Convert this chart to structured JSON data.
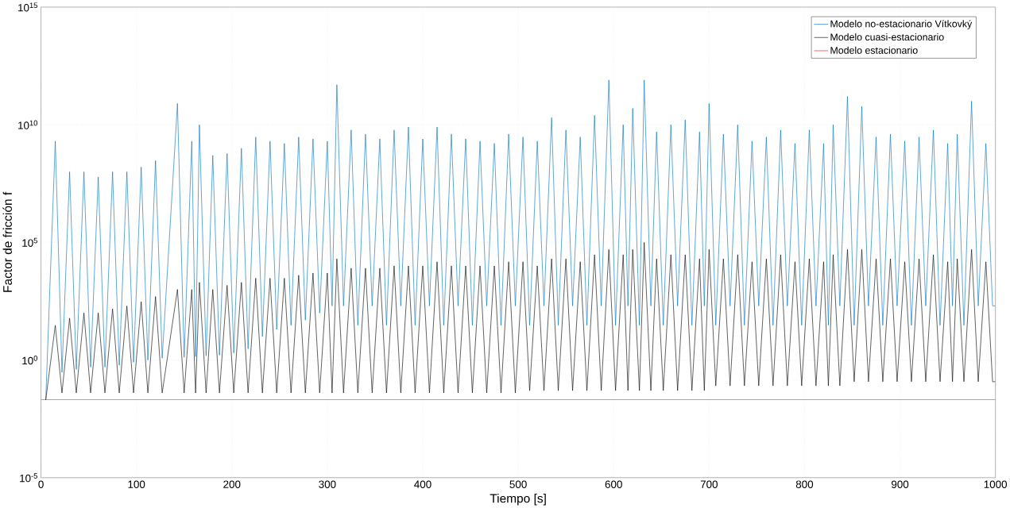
{
  "chart_data": {
    "type": "line",
    "xlabel": "Tiempo [s]",
    "ylabel": "Factor de fricción f",
    "log": "y",
    "grid": true,
    "legend": "top right",
    "xlim": [
      0,
      1000
    ],
    "xticks": [
      0,
      100,
      200,
      300,
      400,
      500,
      600,
      700,
      800,
      900,
      1000
    ],
    "ylim": [
      1e-05,
      1000000000000000.0
    ],
    "yticks": [
      {
        "value": 1e-05,
        "label": "10$^{-5}$"
      },
      {
        "value": 1,
        "label": "10$^{0}$"
      },
      {
        "value": 100000.0,
        "label": "10$^{5}$"
      },
      {
        "value": 10000000000.0,
        "label": "10$^{10}$"
      },
      {
        "value": 1000000000000000.0,
        "label": "10$^{15}$"
      }
    ],
    "x": [
      5,
      15,
      22,
      30,
      37,
      45,
      52,
      60,
      67,
      75,
      82,
      90,
      97,
      105,
      112,
      120,
      127,
      143,
      150,
      158,
      162,
      166,
      173,
      180,
      187,
      195,
      202,
      210,
      217,
      225,
      232,
      240,
      247,
      255,
      262,
      270,
      277,
      285,
      292,
      300,
      305,
      310,
      317,
      325,
      332,
      340,
      347,
      355,
      362,
      370,
      377,
      385,
      392,
      400,
      407,
      415,
      422,
      430,
      437,
      445,
      452,
      460,
      467,
      475,
      482,
      490,
      497,
      505,
      512,
      520,
      527,
      535,
      542,
      550,
      557,
      565,
      572,
      580,
      587,
      595,
      602,
      610,
      615,
      620,
      627,
      632,
      639,
      645,
      652,
      660,
      667,
      675,
      682,
      690,
      695,
      700,
      707,
      715,
      722,
      730,
      737,
      745,
      752,
      760,
      767,
      775,
      782,
      790,
      797,
      805,
      812,
      820,
      825,
      830,
      837,
      845,
      852,
      860,
      867,
      875,
      882,
      890,
      897,
      905,
      912,
      920,
      927,
      935,
      942,
      950,
      955,
      960,
      967,
      975,
      982,
      990,
      997,
      1000
    ],
    "series": [
      {
        "name": "Modelo no-estacionario Vítkovký",
        "color": "#0072bd",
        "values": [
          0.02,
          2000000000.0,
          0.3,
          100000000.0,
          0.4,
          100000000.0,
          0.5,
          60000000.0,
          0.5,
          100000000.0,
          0.6,
          100000000.0,
          0.8,
          160000000.0,
          1,
          300000000.0,
          1.2,
          80000000000.0,
          1.3,
          2000000000.0,
          1.4,
          10000000000.0,
          1.5,
          500000000.0,
          1.6,
          600000000.0,
          2,
          1000000000.0,
          3,
          3000000000.0,
          10,
          2000000000.0,
          20,
          1600000000.0,
          30,
          3000000000.0,
          50,
          2500000000.0,
          100,
          2000000000.0,
          200,
          500000000000.0,
          200,
          6000000000.0,
          30,
          4000000000.0,
          200,
          2500000000.0,
          30,
          6000000000.0,
          200,
          8000000000.0,
          30,
          2500000000.0,
          200,
          8000000000.0,
          30,
          4000000000.0,
          200,
          2500000000.0,
          30,
          2000000000.0,
          200,
          1600000000.0,
          30,
          4000000000.0,
          200,
          3000000000.0,
          30,
          2000000000.0,
          200,
          20000000000.0,
          30,
          6000000000.0,
          200,
          3000000000.0,
          30,
          25000000000.0,
          200,
          800000000000.0,
          30,
          10000000000.0,
          200,
          50000000000.0,
          30,
          800000000000.0,
          200,
          5000000000.0,
          30,
          10000000000.0,
          200,
          16000000000.0,
          30,
          5000000000.0,
          200,
          80000000000.0,
          30,
          4000000000.0,
          200,
          10000000000.0,
          30,
          2000000000.0,
          200,
          3000000000.0,
          30,
          6000000000.0,
          200,
          1600000000.0,
          30,
          6000000000.0,
          200,
          1600000000.0,
          30,
          10000000000.0,
          200,
          160000000000.0,
          30,
          60000000000.0,
          200,
          3000000000.0,
          30,
          4000000000.0,
          200,
          2000000000.0,
          30,
          3000000000.0,
          200,
          6000000000.0,
          30,
          1600000000.0,
          200,
          4000000000.0,
          30,
          100000000000.0,
          200,
          1600000000.0,
          200,
          200
        ]
      },
      {
        "name": "Modelo cuasi-estacionario",
        "color": "#000000",
        "values": [
          0.02,
          30,
          0.04,
          60,
          0.04,
          100,
          0.04,
          100,
          0.04,
          150,
          0.04,
          200,
          0.04,
          300,
          0.04,
          500,
          0.04,
          1000,
          0.04,
          1000,
          0.04,
          2000,
          0.04,
          1000,
          0.04,
          1500,
          0.04,
          2000,
          0.04,
          3000,
          0.04,
          3000,
          0.04,
          3000,
          0.04,
          4000,
          0.04,
          5000,
          0.04,
          5000,
          0.04,
          20000.0,
          0.04,
          8000,
          0.04,
          8000,
          0.04,
          8000,
          0.04,
          10000.0,
          0.04,
          10000.0,
          0.04,
          10000.0,
          0.04,
          15000.0,
          0.04,
          10000.0,
          0.04,
          10000.0,
          0.04,
          10000.0,
          0.04,
          10000.0,
          0.04,
          15000.0,
          0.04,
          15000.0,
          0.05,
          10000.0,
          0.05,
          20000.0,
          0.05,
          20000.0,
          0.05,
          15000.0,
          0.05,
          30000.0,
          0.05,
          50000.0,
          0.05,
          30000.0,
          0.05,
          50000.0,
          0.05,
          100000.0,
          0.05,
          20000.0,
          0.05,
          30000.0,
          0.05,
          30000.0,
          0.05,
          20000.0,
          0.05,
          50000.0,
          0.08,
          20000.0,
          0.08,
          30000.0,
          0.08,
          15000.0,
          0.08,
          20000.0,
          0.08,
          30000.0,
          0.08,
          15000.0,
          0.08,
          20000.0,
          0.08,
          15000.0,
          0.08,
          30000.0,
          0.08,
          50000.0,
          0.12,
          50000.0,
          0.12,
          20000.0,
          0.12,
          20000.0,
          0.12,
          15000.0,
          0.12,
          20000.0,
          0.12,
          30000.0,
          0.12,
          15000.0,
          0.12,
          20000.0,
          0.12,
          50000.0,
          0.12,
          15000.0,
          0.12,
          0.12
        ]
      },
      {
        "name": "Modelo estacionario",
        "color": "#ff0000",
        "x": [
          0,
          1000
        ],
        "values": [
          0.021,
          0.021
        ]
      }
    ]
  }
}
